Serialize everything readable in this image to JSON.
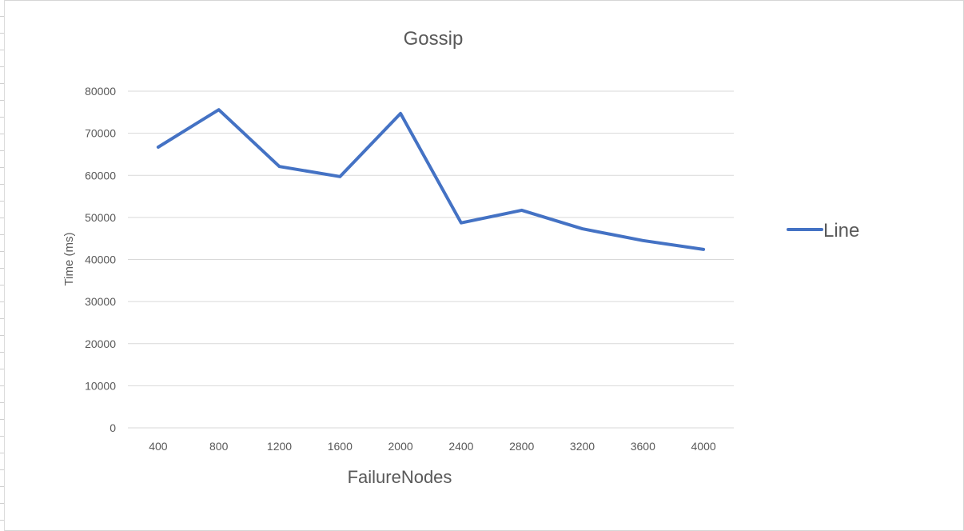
{
  "chart_data": {
    "type": "line",
    "title": "Gossip",
    "xlabel": "FailureNodes",
    "ylabel": "Time (ms)",
    "categories": [
      "400",
      "800",
      "1200",
      "1600",
      "2000",
      "2400",
      "2800",
      "3200",
      "3600",
      "4000"
    ],
    "series": [
      {
        "name": "Line",
        "values": [
          66700,
          75600,
          62100,
          59700,
          74700,
          48700,
          51700,
          47300,
          44500,
          42400
        ],
        "color": "#4472C4"
      }
    ],
    "ylim": [
      0,
      80000
    ],
    "yticks": [
      "0",
      "10000",
      "20000",
      "30000",
      "40000",
      "50000",
      "60000",
      "70000",
      "80000"
    ],
    "grid": true,
    "legend_position": "right"
  }
}
